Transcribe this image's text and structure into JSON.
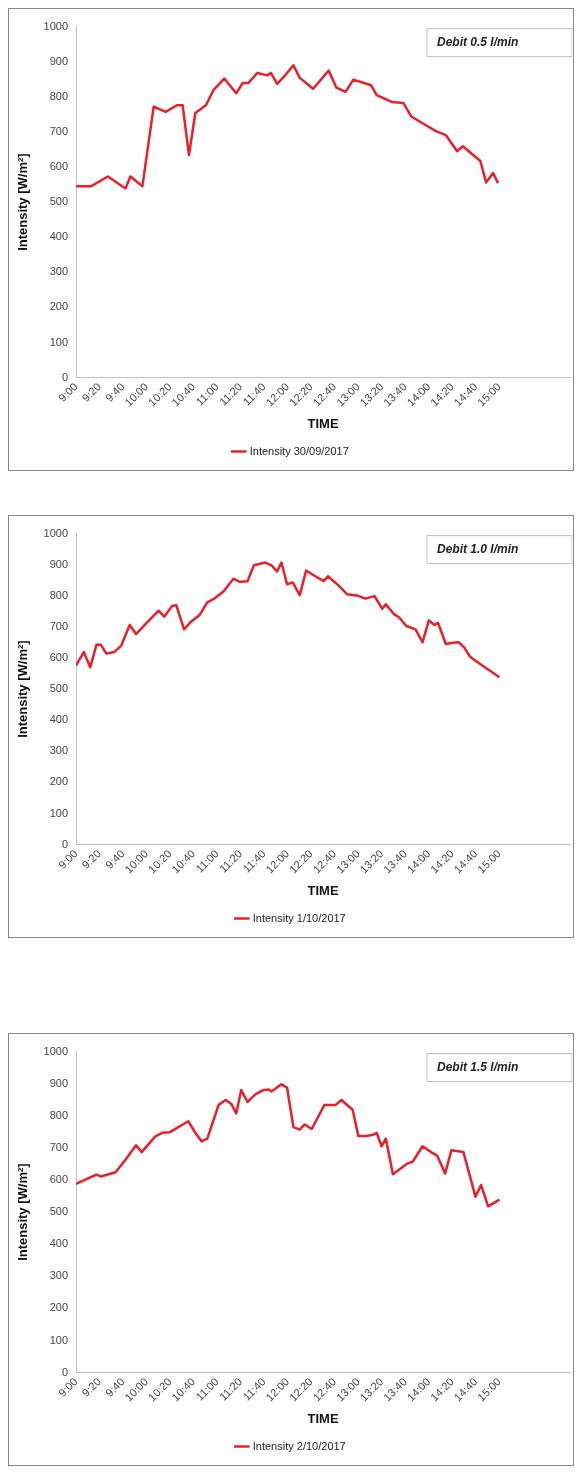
{
  "chart_data": [
    {
      "type": "line",
      "xlabel": "TIME",
      "ylabel": "Intensity [W/m²]",
      "annotations": [
        "Debit 0.5 l/min"
      ],
      "legend": "bottom",
      "grid": false,
      "marker": "none",
      "line_style": "solid",
      "xlim": [
        9,
        16
      ],
      "ylim": [
        0,
        1000
      ],
      "yticks": [
        0,
        100,
        200,
        300,
        400,
        500,
        600,
        700,
        800,
        900,
        1000
      ],
      "xticks": [
        {
          "value": 9,
          "label": "9:00"
        },
        {
          "value": 9.3333,
          "label": "9:20"
        },
        {
          "value": 9.6667,
          "label": "9:40"
        },
        {
          "value": 10,
          "label": "10:00"
        },
        {
          "value": 10.3333,
          "label": "10:20"
        },
        {
          "value": 10.6667,
          "label": "10:40"
        },
        {
          "value": 11,
          "label": "11:00"
        },
        {
          "value": 11.3333,
          "label": "11:20"
        },
        {
          "value": 11.6667,
          "label": "11:40"
        },
        {
          "value": 12,
          "label": "12:00"
        },
        {
          "value": 12.3333,
          "label": "12:20"
        },
        {
          "value": 12.6667,
          "label": "12:40"
        },
        {
          "value": 13,
          "label": "13:00"
        },
        {
          "value": 13.3333,
          "label": "13:20"
        },
        {
          "value": 13.6667,
          "label": "13:40"
        },
        {
          "value": 14,
          "label": "14:00"
        },
        {
          "value": 14.3333,
          "label": "14:20"
        },
        {
          "value": 14.6667,
          "label": "14:40"
        },
        {
          "value": 15,
          "label": "15:00"
        }
      ],
      "series": [
        {
          "name": "Intensity 30/09/2017",
          "color": "#e8202a",
          "x": [
            9.0,
            9.21,
            9.45,
            9.7,
            9.77,
            9.94,
            10.1,
            10.27,
            10.43,
            10.51,
            10.6,
            10.69,
            10.84,
            10.95,
            11.1,
            11.27,
            11.36,
            11.44,
            11.57,
            11.71,
            11.76,
            11.85,
            11.95,
            12.08,
            12.17,
            12.36,
            12.58,
            12.69,
            12.82,
            12.93,
            13.18,
            13.26,
            13.48,
            13.64,
            13.75,
            13.94,
            14.1,
            14.24,
            14.4,
            14.48,
            14.73,
            14.81,
            14.91,
            14.98
          ],
          "values": [
            545,
            545,
            573,
            539,
            573,
            545,
            772,
            757,
            776,
            776,
            634,
            754,
            776,
            820,
            852,
            810,
            839,
            839,
            868,
            861,
            868,
            837,
            858,
            890,
            854,
            823,
            875,
            826,
            814,
            849,
            833,
            805,
            785,
            782,
            744,
            721,
            702,
            691,
            645,
            659,
            617,
            556,
            583,
            554
          ]
        }
      ]
    },
    {
      "type": "line",
      "xlabel": "TIME",
      "ylabel": "Intensity [W/m²]",
      "annotations": [
        "Debit 1.0 l/min"
      ],
      "legend": "bottom",
      "grid": false,
      "marker": "none",
      "line_style": "solid",
      "xlim": [
        9,
        16
      ],
      "ylim": [
        0,
        1000
      ],
      "yticks": [
        0,
        100,
        200,
        300,
        400,
        500,
        600,
        700,
        800,
        900,
        1000
      ],
      "xticks": [
        {
          "value": 9,
          "label": "9:00"
        },
        {
          "value": 9.3333,
          "label": "9:20"
        },
        {
          "value": 9.6667,
          "label": "9:40"
        },
        {
          "value": 10,
          "label": "10:00"
        },
        {
          "value": 10.3333,
          "label": "10:20"
        },
        {
          "value": 10.6667,
          "label": "10:40"
        },
        {
          "value": 11,
          "label": "11:00"
        },
        {
          "value": 11.3333,
          "label": "11:20"
        },
        {
          "value": 11.6667,
          "label": "11:40"
        },
        {
          "value": 12,
          "label": "12:00"
        },
        {
          "value": 12.3333,
          "label": "12:20"
        },
        {
          "value": 12.6667,
          "label": "12:40"
        },
        {
          "value": 13,
          "label": "13:00"
        },
        {
          "value": 13.3333,
          "label": "13:20"
        },
        {
          "value": 13.6667,
          "label": "13:40"
        },
        {
          "value": 14,
          "label": "14:00"
        },
        {
          "value": 14.3333,
          "label": "14:20"
        },
        {
          "value": 14.6667,
          "label": "14:40"
        },
        {
          "value": 15,
          "label": "15:00"
        }
      ],
      "series": [
        {
          "name": "Intensity 1/10/2017",
          "color": "#e8202a",
          "x": [
            9.0,
            9.11,
            9.2,
            9.29,
            9.35,
            9.43,
            9.54,
            9.64,
            9.76,
            9.85,
            10.01,
            10.17,
            10.25,
            10.36,
            10.42,
            10.53,
            10.62,
            10.75,
            10.86,
            10.96,
            11.09,
            11.23,
            11.32,
            11.43,
            11.52,
            11.68,
            11.77,
            11.85,
            11.91,
            11.99,
            12.07,
            12.17,
            12.26,
            12.39,
            12.51,
            12.57,
            12.73,
            12.84,
            13.0,
            13.1,
            13.23,
            13.34,
            13.39,
            13.5,
            13.58,
            13.68,
            13.81,
            13.91,
            14.0,
            14.08,
            14.13,
            14.24,
            14.34,
            14.42,
            14.5,
            14.58,
            14.66,
            15.0
          ],
          "values": [
            576,
            619,
            570,
            643,
            643,
            614,
            619,
            640,
            706,
            677,
            715,
            752,
            733,
            767,
            770,
            692,
            715,
            738,
            779,
            791,
            814,
            855,
            845,
            847,
            898,
            907,
            898,
            878,
            907,
            837,
            843,
            802,
            881,
            863,
            847,
            863,
            831,
            805,
            800,
            791,
            799,
            758,
            773,
            742,
            730,
            703,
            692,
            651,
            721,
            706,
            713,
            645,
            649,
            651,
            634,
            605,
            591,
            538
          ]
        }
      ]
    },
    {
      "type": "line",
      "xlabel": "TIME",
      "ylabel": "Intensity [W/m²]",
      "annotations": [
        "Debit 1.5 l/min"
      ],
      "legend": "bottom",
      "grid": false,
      "marker": "none",
      "line_style": "solid",
      "xlim": [
        9,
        16
      ],
      "ylim": [
        0,
        1000
      ],
      "yticks": [
        0,
        100,
        200,
        300,
        400,
        500,
        600,
        700,
        800,
        900,
        1000
      ],
      "xticks": [
        {
          "value": 9,
          "label": "9:00"
        },
        {
          "value": 9.3333,
          "label": "9:20"
        },
        {
          "value": 9.6667,
          "label": "9:40"
        },
        {
          "value": 10,
          "label": "10:00"
        },
        {
          "value": 10.3333,
          "label": "10:20"
        },
        {
          "value": 10.6667,
          "label": "10:40"
        },
        {
          "value": 11,
          "label": "11:00"
        },
        {
          "value": 11.3333,
          "label": "11:20"
        },
        {
          "value": 11.6667,
          "label": "11:40"
        },
        {
          "value": 12,
          "label": "12:00"
        },
        {
          "value": 12.3333,
          "label": "12:20"
        },
        {
          "value": 12.6667,
          "label": "12:40"
        },
        {
          "value": 13,
          "label": "13:00"
        },
        {
          "value": 13.3333,
          "label": "13:20"
        },
        {
          "value": 13.6667,
          "label": "13:40"
        },
        {
          "value": 14,
          "label": "14:00"
        },
        {
          "value": 14.3333,
          "label": "14:20"
        },
        {
          "value": 14.6667,
          "label": "14:40"
        },
        {
          "value": 15,
          "label": "15:00"
        }
      ],
      "series": [
        {
          "name": "Intensity 2/10/2017",
          "color": "#e8202a",
          "x": [
            9.0,
            9.17,
            9.29,
            9.35,
            9.56,
            9.7,
            9.85,
            9.93,
            10.12,
            10.22,
            10.33,
            10.59,
            10.69,
            10.78,
            10.86,
            11.02,
            11.12,
            11.2,
            11.27,
            11.34,
            11.43,
            11.54,
            11.65,
            11.73,
            11.77,
            11.91,
            11.99,
            12.08,
            12.17,
            12.24,
            12.34,
            12.52,
            12.68,
            12.76,
            12.92,
            13.0,
            13.11,
            13.21,
            13.26,
            13.33,
            13.39,
            13.49,
            13.69,
            13.77,
            13.91,
            14.03,
            14.12,
            14.23,
            14.32,
            14.49,
            14.66,
            14.74,
            14.84,
            15.0
          ],
          "values": [
            588,
            605,
            617,
            611,
            624,
            663,
            708,
            687,
            735,
            747,
            749,
            783,
            747,
            720,
            729,
            834,
            849,
            837,
            807,
            880,
            843,
            867,
            880,
            882,
            876,
            898,
            888,
            765,
            757,
            773,
            759,
            834,
            834,
            849,
            819,
            737,
            737,
            741,
            747,
            705,
            729,
            618,
            651,
            657,
            705,
            687,
            675,
            620,
            693,
            687,
            548,
            584,
            518,
            539
          ]
        }
      ]
    }
  ]
}
